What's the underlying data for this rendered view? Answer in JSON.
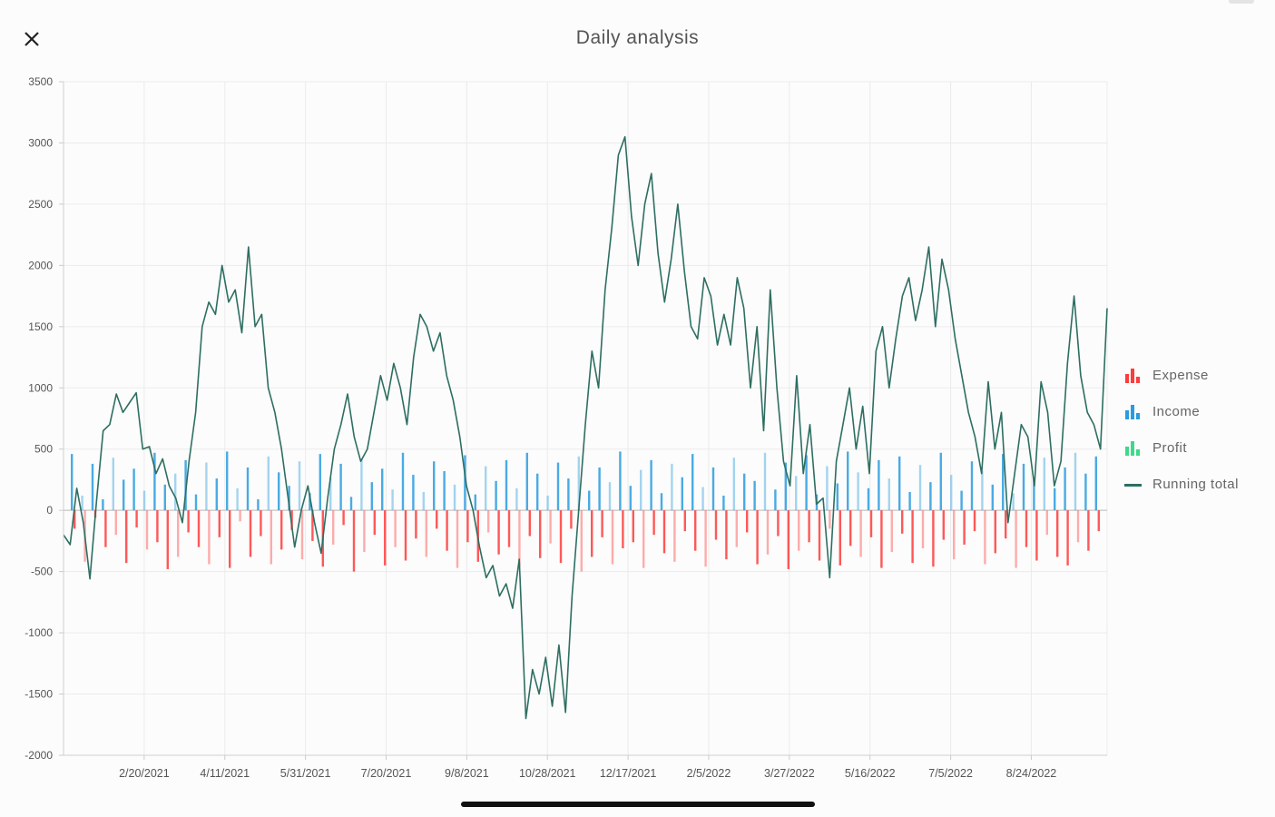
{
  "header": {
    "title": "Daily analysis",
    "close_icon": "close-icon"
  },
  "legend": {
    "items": [
      {
        "label": "Expense",
        "icon": "bar-chart-icon",
        "color": "#ff3b3b"
      },
      {
        "label": "Income",
        "icon": "bar-chart-icon",
        "color": "#2a9be0"
      },
      {
        "label": "Profit",
        "icon": "bar-chart-icon",
        "color": "#3fd88a"
      },
      {
        "label": "Running total",
        "icon": "line-icon",
        "color": "#2e6e62"
      }
    ]
  },
  "chart_data": {
    "type": "bar",
    "title": "Daily analysis",
    "xlabel": "",
    "ylabel": "",
    "ylim": [
      -2000,
      3500
    ],
    "yticks": [
      -2000,
      -1500,
      -1000,
      -500,
      0,
      500,
      1000,
      1500,
      2000,
      2500,
      3000,
      3500
    ],
    "xticks": [
      "2/20/2021",
      "4/11/2021",
      "5/31/2021",
      "7/20/2021",
      "9/8/2021",
      "10/28/2021",
      "12/17/2021",
      "2/5/2022",
      "3/27/2022",
      "5/16/2022",
      "7/5/2022",
      "8/24/2022"
    ],
    "x_start": "1/1/2021",
    "x_end": "10/10/2022",
    "grid": true,
    "legend_position": "right",
    "series": [
      {
        "name": "Expense",
        "type": "bar",
        "color": "#ff3b3b",
        "values": [
          -150,
          -420,
          -60,
          -300,
          -200,
          -430,
          -140,
          -320,
          -260,
          -480,
          -380,
          -180,
          -300,
          -440,
          -220,
          -470,
          -90,
          -380,
          -210,
          -440,
          -320,
          -160,
          -400,
          -250,
          -460,
          -280,
          -120,
          -500,
          -340,
          -200,
          -450,
          -300,
          -410,
          -230,
          -380,
          -150,
          -330,
          -470,
          -260,
          -420,
          -180,
          -360,
          -300,
          -460,
          -210,
          -390,
          -270,
          -430,
          -150,
          -500,
          -380,
          -220,
          -440,
          -310,
          -260,
          -470,
          -200,
          -350,
          -420,
          -170,
          -330,
          -460,
          -240,
          -400,
          -300,
          -180,
          -440,
          -360,
          -210,
          -480,
          -330,
          -260,
          -410,
          -150,
          -450,
          -290,
          -380,
          -220,
          -470,
          -340,
          -190,
          -430,
          -310,
          -460,
          -240,
          -400,
          -280,
          -170,
          -440,
          -350,
          -230,
          -470,
          -300,
          -410,
          -200,
          -380,
          -450,
          -260,
          -330,
          -170
        ]
      },
      {
        "name": "Income",
        "type": "bar",
        "color": "#2a9be0",
        "values": [
          460,
          120,
          380,
          90,
          430,
          250,
          340,
          160,
          470,
          210,
          300,
          410,
          130,
          390,
          260,
          480,
          180,
          350,
          90,
          440,
          310,
          200,
          400,
          140,
          460,
          270,
          380,
          110,
          420,
          230,
          340,
          170,
          470,
          290,
          150,
          400,
          320,
          210,
          450,
          130,
          360,
          240,
          410,
          180,
          470,
          300,
          120,
          390,
          260,
          440,
          160,
          350,
          230,
          480,
          200,
          330,
          410,
          140,
          380,
          270,
          460,
          190,
          350,
          120,
          430,
          300,
          240,
          470,
          170,
          390,
          280,
          450,
          130,
          360,
          220,
          480,
          310,
          180,
          410,
          260,
          440,
          150,
          370,
          230,
          470,
          290,
          160,
          400,
          320,
          210,
          460,
          140,
          380,
          250,
          430,
          180,
          350,
          470,
          300,
          440
        ]
      },
      {
        "name": "Running total",
        "type": "line",
        "color": "#2e6e62",
        "values": [
          -200,
          -280,
          180,
          -100,
          -560,
          80,
          650,
          700,
          950,
          800,
          880,
          960,
          500,
          520,
          300,
          420,
          200,
          100,
          -100,
          400,
          800,
          1500,
          1700,
          1600,
          2000,
          1700,
          1800,
          1450,
          2150,
          1500,
          1600,
          1000,
          800,
          500,
          100,
          -300,
          0,
          200,
          -100,
          -350,
          100,
          500,
          700,
          950,
          600,
          400,
          500,
          800,
          1100,
          900,
          1200,
          1000,
          700,
          1250,
          1600,
          1500,
          1300,
          1450,
          1100,
          900,
          600,
          200,
          0,
          -300,
          -550,
          -450,
          -700,
          -600,
          -800,
          -400,
          -1700,
          -1300,
          -1500,
          -1200,
          -1600,
          -1100,
          -1650,
          -700,
          0,
          700,
          1300,
          1000,
          1800,
          2300,
          2900,
          3050,
          2400,
          2000,
          2500,
          2750,
          2100,
          1700,
          2050,
          2500,
          1950,
          1500,
          1400,
          1900,
          1750,
          1350,
          1600,
          1350,
          1900,
          1650,
          1000,
          1500,
          650,
          1800,
          1000,
          400,
          200,
          1100,
          300,
          700,
          50,
          100,
          -550,
          400,
          700,
          1000,
          500,
          850,
          300,
          1300,
          1500,
          1000,
          1400,
          1750,
          1900,
          1550,
          1800,
          2150,
          1500,
          2050,
          1800,
          1400,
          1100,
          800,
          600,
          300,
          1050,
          500,
          800,
          -100,
          300,
          700,
          600,
          200,
          1050,
          800,
          200,
          400,
          1200,
          1750,
          1100,
          800,
          700,
          500,
          1650
        ]
      }
    ]
  }
}
